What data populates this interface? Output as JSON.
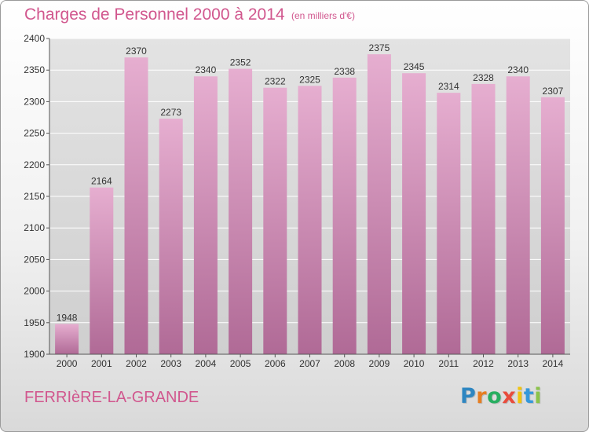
{
  "header": {
    "title": "Charges de Personnel 2000 à 2014",
    "subtitle": "(en milliers d'€)"
  },
  "footer": {
    "commune": "FERRIèRE-LA-GRANDE",
    "brand": {
      "letters": [
        "P",
        "r",
        "o",
        "x",
        "i",
        "t",
        "i"
      ],
      "colors": [
        "#2e86c1",
        "#e67e22",
        "#27ae60",
        "#e84c3d",
        "#f1c40f",
        "#3498db",
        "#8bc34a"
      ]
    }
  },
  "colors": {
    "bar_top": "#e6aed0",
    "bar_bottom": "#b06a96",
    "accent": "#d1578e"
  },
  "chart_data": {
    "type": "bar",
    "categories": [
      "2000",
      "2001",
      "2002",
      "2003",
      "2004",
      "2005",
      "2006",
      "2007",
      "2008",
      "2009",
      "2010",
      "2011",
      "2012",
      "2013",
      "2014"
    ],
    "values": [
      1948,
      2164,
      2370,
      2273,
      2340,
      2352,
      2322,
      2325,
      2338,
      2375,
      2345,
      2314,
      2328,
      2340,
      2307
    ],
    "ylim": [
      1900,
      2400
    ],
    "yticks": [
      1900,
      1950,
      2000,
      2050,
      2100,
      2150,
      2200,
      2250,
      2300,
      2350,
      2400
    ],
    "grid": true,
    "legend": "none",
    "title": "Charges de Personnel 2000 à 2014",
    "xlabel": "",
    "ylabel": ""
  }
}
